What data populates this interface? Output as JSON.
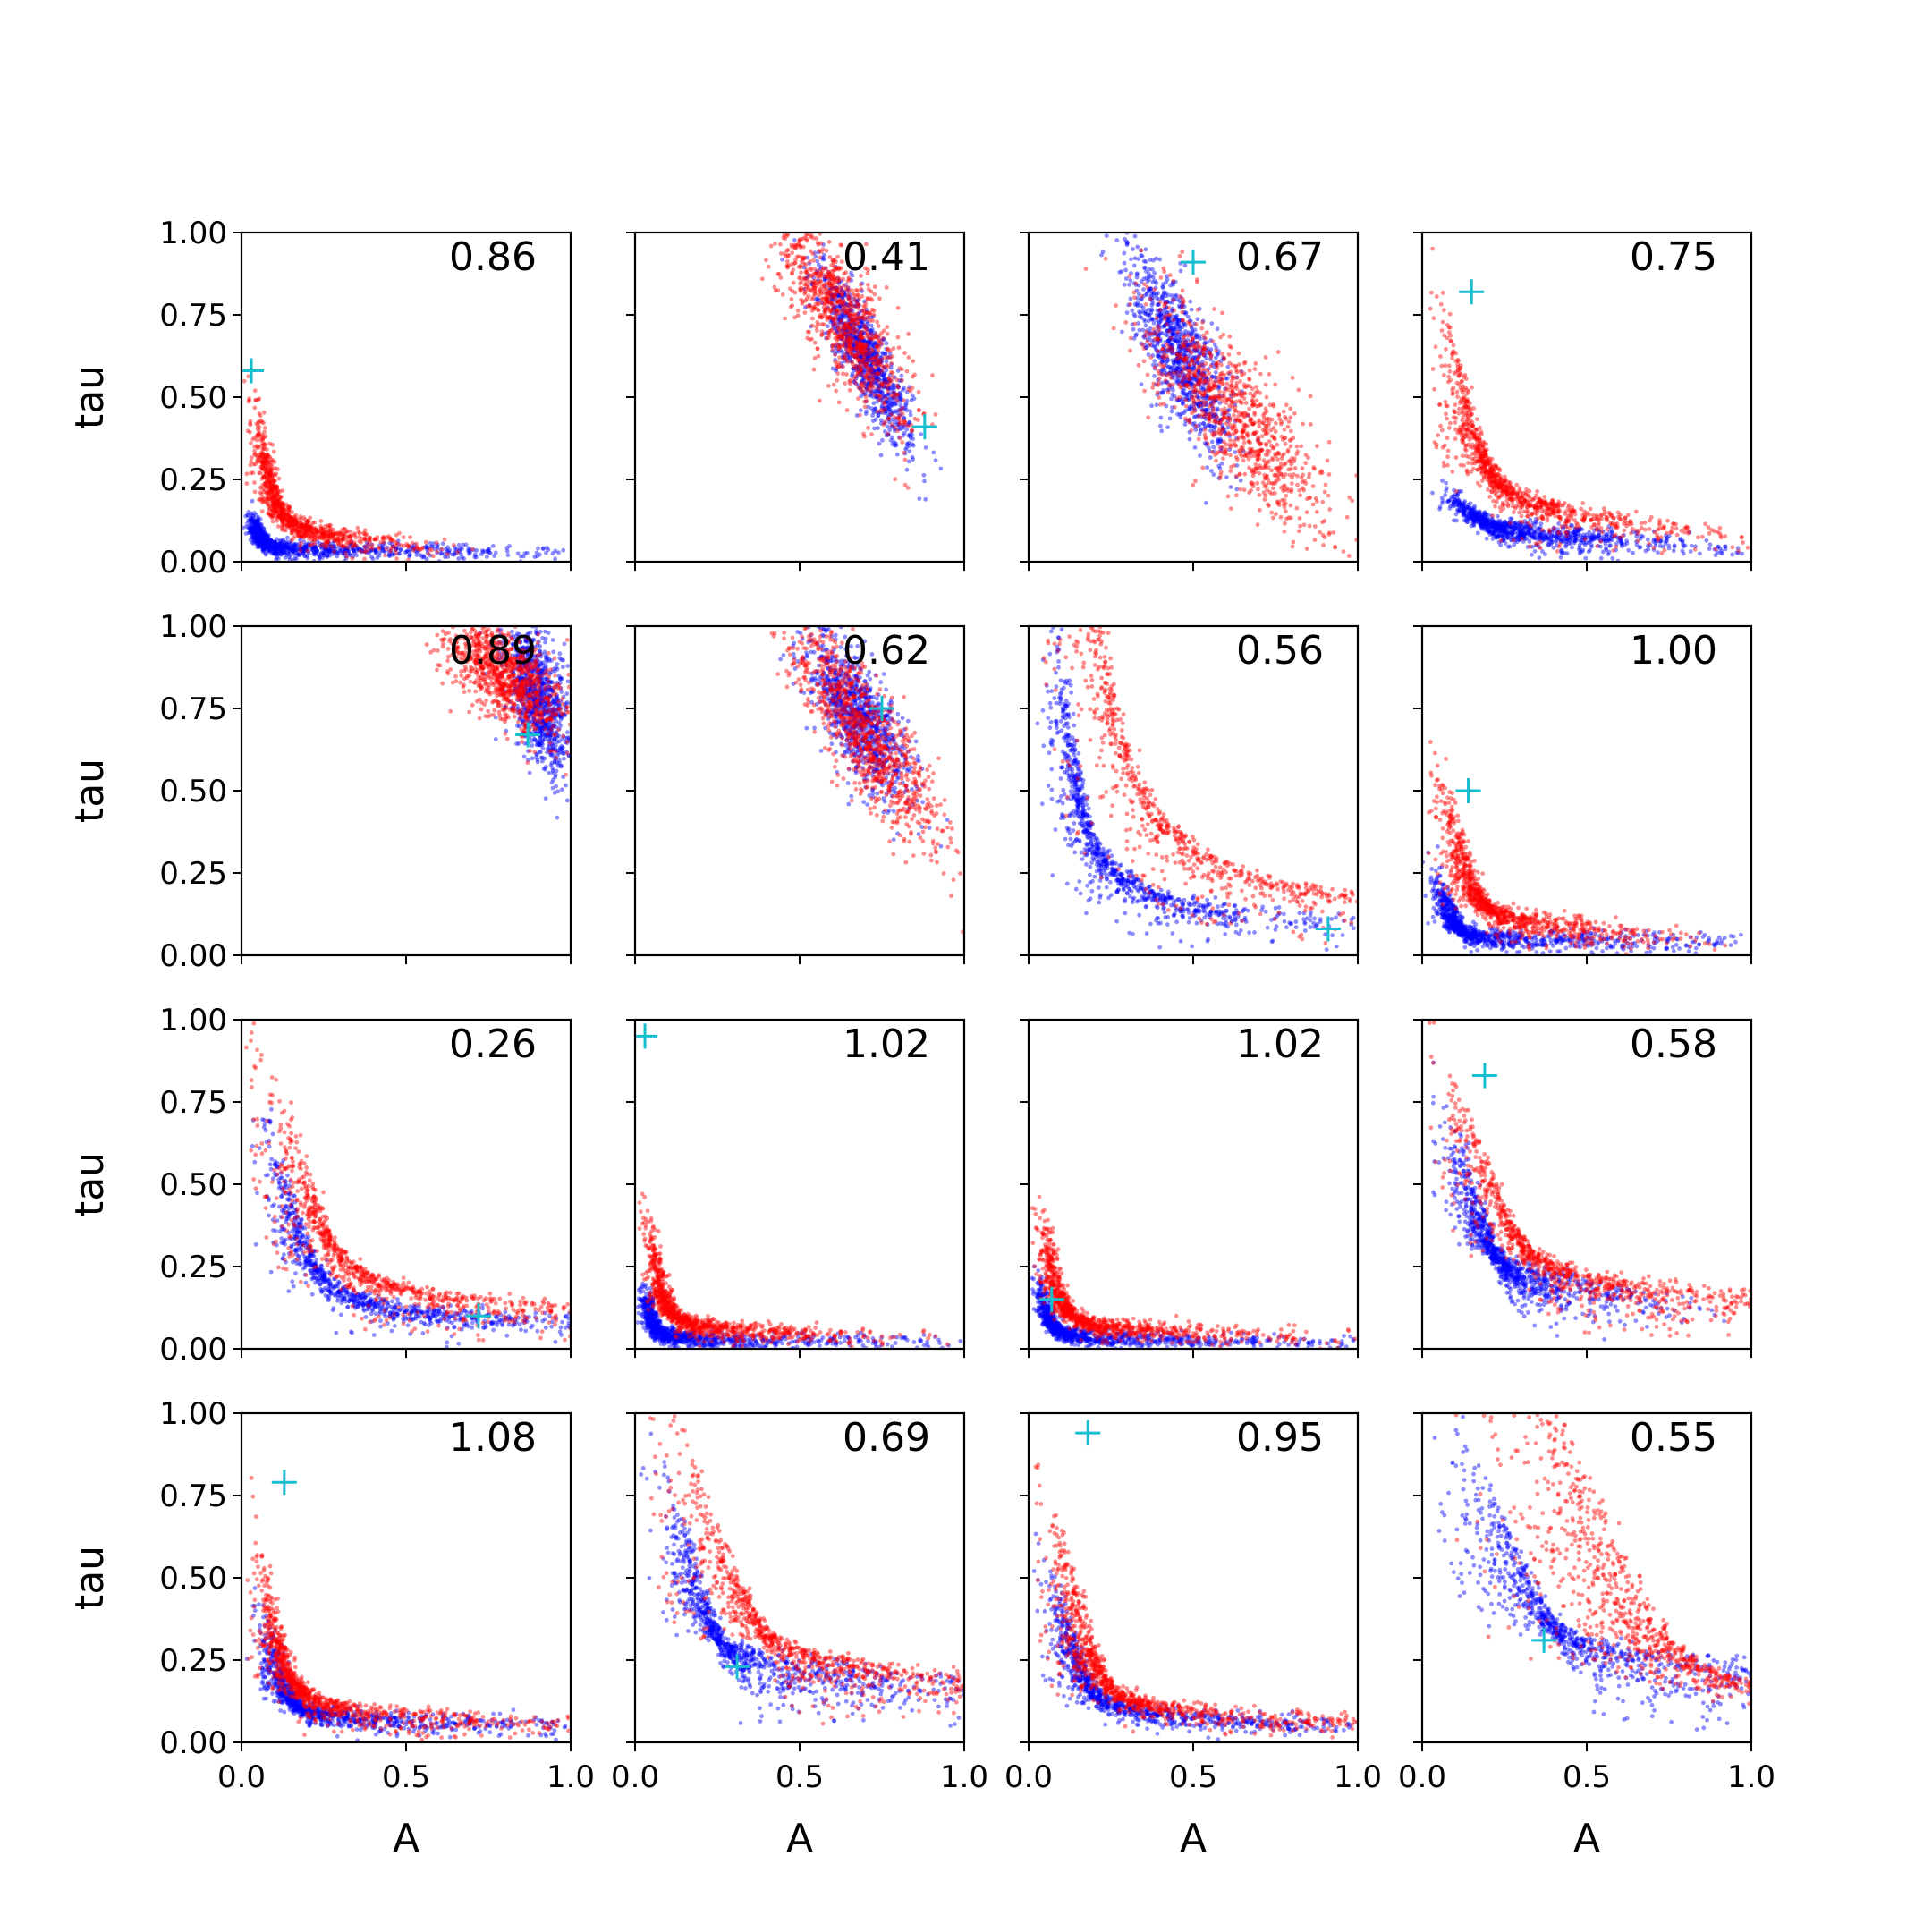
{
  "chart_data": {
    "type": "scatter",
    "layout": "4x4 grid of scatter panels with shared axes",
    "xlabel": "A",
    "ylabel": "tau",
    "xlim": [
      0,
      1
    ],
    "ylim": [
      0,
      1
    ],
    "xticks": [
      "0.0",
      "0.5",
      "1.0"
    ],
    "yticks": [
      "0.00",
      "0.25",
      "0.50",
      "0.75",
      "1.00"
    ],
    "grid": false,
    "colors": {
      "series_a": "#0000ff",
      "series_b": "#ff0000",
      "marker": "#17becf"
    },
    "panels": [
      {
        "label": "0.86",
        "marker": [
          0.03,
          0.58
        ],
        "series_a": {
          "ax": 0.03,
          "bx": 0.02,
          "ay": 0.03,
          "by": 0.006,
          "t0": -0.5,
          "t1": 3.8,
          "noise": 0.06
        },
        "series_b": {
          "ax": 0.05,
          "bx": 0.04,
          "ay": 0.05,
          "by": 0.02,
          "t0": -0.5,
          "t1": 2.4,
          "noise": 0.1
        }
      },
      {
        "label": "0.41",
        "marker": [
          0.88,
          0.41
        ],
        "series_a": {
          "cx": 0.7,
          "cy": 0.62,
          "sx": 0.07,
          "sy": 0.13,
          "rho": -0.85
        },
        "series_b": {
          "cx": 0.63,
          "cy": 0.74,
          "sx": 0.1,
          "sy": 0.16,
          "rho": -0.8
        }
      },
      {
        "label": "0.67",
        "marker": [
          0.5,
          0.91
        ],
        "series_a": {
          "cx": 0.46,
          "cy": 0.63,
          "sx": 0.08,
          "sy": 0.15,
          "rho": -0.75
        },
        "series_b": {
          "cx": 0.63,
          "cy": 0.44,
          "sx": 0.14,
          "sy": 0.17,
          "rho": -0.8
        }
      },
      {
        "label": "0.75",
        "marker": [
          0.15,
          0.82
        ],
        "series_a": {
          "ax": 0.07,
          "bx": 0.04,
          "ay": 0.06,
          "by": 0.02,
          "t0": 0.7,
          "t1": 2.8,
          "noise": 0.1
        },
        "series_b": {
          "ax": 0.07,
          "bx": 0.06,
          "ay": 0.08,
          "by": 0.05,
          "t0": 0.0,
          "t1": 2.4,
          "noise": 0.12
        }
      },
      {
        "label": "0.89",
        "marker": [
          0.87,
          0.67
        ],
        "series_a": {
          "cx": 0.9,
          "cy": 0.78,
          "sx": 0.05,
          "sy": 0.11,
          "rho": -0.5
        },
        "series_b": {
          "cx": 0.8,
          "cy": 0.85,
          "sx": 0.09,
          "sy": 0.09,
          "rho": -0.6
        }
      },
      {
        "label": "0.62",
        "marker": [
          0.75,
          0.75
        ],
        "series_a": {
          "cx": 0.68,
          "cy": 0.72,
          "sx": 0.08,
          "sy": 0.12,
          "rho": -0.7
        },
        "series_b": {
          "cx": 0.7,
          "cy": 0.67,
          "sx": 0.12,
          "sy": 0.17,
          "rho": -0.85
        }
      },
      {
        "label": "0.56",
        "marker": [
          0.91,
          0.08
        ],
        "series_a": {
          "ax": 0.05,
          "bx": 0.1,
          "ay": 0.05,
          "by": 0.05,
          "t0": -0.6,
          "t1": 2.4,
          "noise": 0.12
        },
        "series_b": {
          "ax": 0.08,
          "bx": 0.15,
          "ay": 0.04,
          "by": 0.09,
          "t0": -0.5,
          "t1": 2.3,
          "noise": 0.14
        }
      },
      {
        "label": "1.00",
        "marker": [
          0.14,
          0.5
        ],
        "series_a": {
          "ax": 0.06,
          "bx": 0.02,
          "ay": 0.04,
          "by": 0.012,
          "t0": -0.3,
          "t1": 4.0,
          "noise": 0.1
        },
        "series_b": {
          "ax": 0.08,
          "bx": 0.04,
          "ay": 0.06,
          "by": 0.03,
          "t0": -0.2,
          "t1": 2.7,
          "noise": 0.12
        }
      },
      {
        "label": "0.26",
        "marker": [
          0.72,
          0.1
        ],
        "series_a": {
          "ax": 0.08,
          "bx": 0.09,
          "ay": 0.05,
          "by": 0.035,
          "t0": -0.3,
          "t1": 2.9,
          "noise": 0.1
        },
        "series_b": {
          "ax": 0.1,
          "bx": 0.12,
          "ay": 0.07,
          "by": 0.04,
          "t0": -0.3,
          "t1": 2.5,
          "noise": 0.14
        }
      },
      {
        "label": "1.02",
        "marker": [
          0.03,
          0.95
        ],
        "series_a": {
          "ax": 0.03,
          "bx": 0.015,
          "ay": 0.02,
          "by": 0.01,
          "t0": -0.3,
          "t1": 4.1,
          "noise": 0.08
        },
        "series_b": {
          "ax": 0.05,
          "bx": 0.025,
          "ay": 0.04,
          "by": 0.02,
          "t0": -0.3,
          "t1": 3.2,
          "noise": 0.1
        }
      },
      {
        "label": "1.02",
        "marker": [
          0.07,
          0.15
        ],
        "series_a": {
          "ax": 0.03,
          "bx": 0.02,
          "ay": 0.02,
          "by": 0.012,
          "t0": -0.3,
          "t1": 3.9,
          "noise": 0.08
        },
        "series_b": {
          "ax": 0.05,
          "bx": 0.03,
          "ay": 0.04,
          "by": 0.02,
          "t0": -0.3,
          "t1": 3.2,
          "noise": 0.1
        }
      },
      {
        "label": "0.58",
        "marker": [
          0.19,
          0.83
        ],
        "series_a": {
          "ax": 0.12,
          "bx": 0.03,
          "ay": 0.15,
          "by": 0.05,
          "t0": 0.3,
          "t1": 2.9,
          "noise": 0.1
        },
        "series_b": {
          "ax": 0.1,
          "bx": 0.1,
          "ay": 0.1,
          "by": 0.05,
          "t0": 0.0,
          "t1": 2.5,
          "noise": 0.12
        }
      },
      {
        "label": "1.08",
        "marker": [
          0.13,
          0.79
        ],
        "series_a": {
          "ax": 0.08,
          "bx": 0.03,
          "ay": 0.05,
          "by": 0.02,
          "t0": -0.3,
          "t1": 3.5,
          "noise": 0.1
        },
        "series_b": {
          "ax": 0.06,
          "bx": 0.05,
          "ay": 0.05,
          "by": 0.03,
          "t0": -0.3,
          "t1": 2.9,
          "noise": 0.12
        }
      },
      {
        "label": "0.69",
        "marker": [
          0.31,
          0.23
        ],
        "series_a": {
          "ax": 0.12,
          "bx": 0.05,
          "ay": 0.15,
          "by": 0.05,
          "t0": 0.1,
          "t1": 3.0,
          "noise": 0.1
        },
        "series_b": {
          "ax": 0.15,
          "bx": 0.1,
          "ay": 0.12,
          "by": 0.06,
          "t0": 0.0,
          "t1": 2.6,
          "noise": 0.12
        }
      },
      {
        "label": "0.95",
        "marker": [
          0.18,
          0.94
        ],
        "series_a": {
          "ax": 0.08,
          "bx": 0.05,
          "ay": 0.04,
          "by": 0.03,
          "t0": -0.2,
          "t1": 3.2,
          "noise": 0.1
        },
        "series_b": {
          "ax": 0.1,
          "bx": 0.05,
          "ay": 0.05,
          "by": 0.04,
          "t0": -0.2,
          "t1": 2.9,
          "noise": 0.12
        }
      },
      {
        "label": "0.55",
        "marker": [
          0.37,
          0.31
        ],
        "series_a": {
          "ax": 0.18,
          "bx": 0.1,
          "ay": 0.15,
          "by": 0.05,
          "t0": 0.0,
          "t1": 2.6,
          "noise": 0.12
        },
        "series_b": {
          "ax": 0.35,
          "bx": 0.1,
          "ay": 0.03,
          "by": 0.1,
          "t0": 0.0,
          "t1": 2.4,
          "noise": 0.1
        }
      }
    ]
  }
}
